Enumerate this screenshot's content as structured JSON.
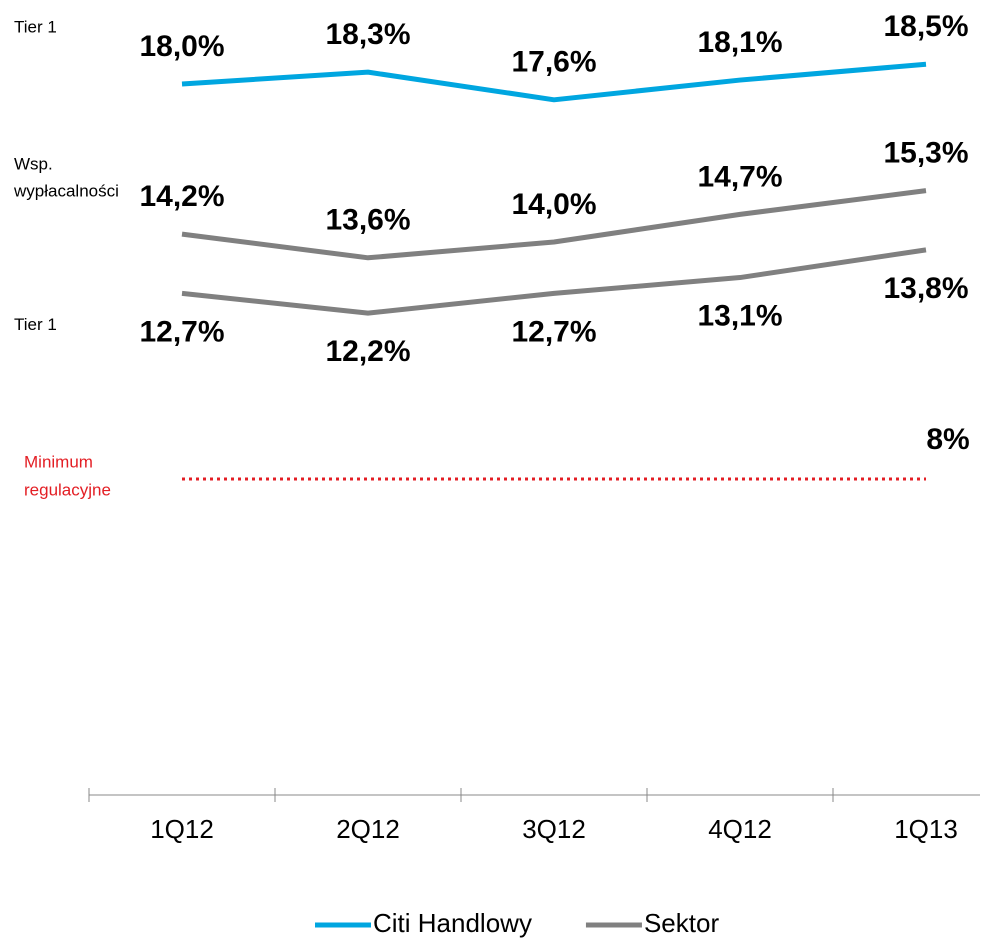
{
  "chart_data": {
    "type": "line",
    "categories": [
      "1Q12",
      "2Q12",
      "3Q12",
      "4Q12",
      "1Q13"
    ],
    "series": [
      {
        "name": "Citi Handlowy",
        "color": "#00a6e0",
        "label": [
          "Tier 1"
        ],
        "label_position": "above",
        "values": [
          18.0,
          18.3,
          17.6,
          18.1,
          18.5
        ],
        "value_labels": [
          "18,0%",
          "18,3%",
          "17,6%",
          "18,1%",
          "18,5%"
        ]
      },
      {
        "name": "Sektor",
        "color": "#808080",
        "label": [
          "Wsp.",
          "wypłacalności"
        ],
        "label_position": "above",
        "values": [
          14.2,
          13.6,
          14.0,
          14.7,
          15.3
        ],
        "value_labels": [
          "14,2%",
          "13,6%",
          "14,0%",
          "14,7%",
          "15,3%"
        ]
      },
      {
        "name": "Sektor",
        "color": "#808080",
        "label": [
          "Tier 1"
        ],
        "label_position": "below",
        "values": [
          12.7,
          12.2,
          12.7,
          13.1,
          13.8
        ],
        "value_labels": [
          "12,7%",
          "12,2%",
          "12,7%",
          "13,1%",
          "13,8%"
        ]
      }
    ],
    "reference": {
      "label": [
        "Minimum",
        "regulacyjne"
      ],
      "value": 8,
      "value_label": "8%",
      "color": "#e31e24"
    },
    "ylim": [
      0,
      20
    ]
  }
}
